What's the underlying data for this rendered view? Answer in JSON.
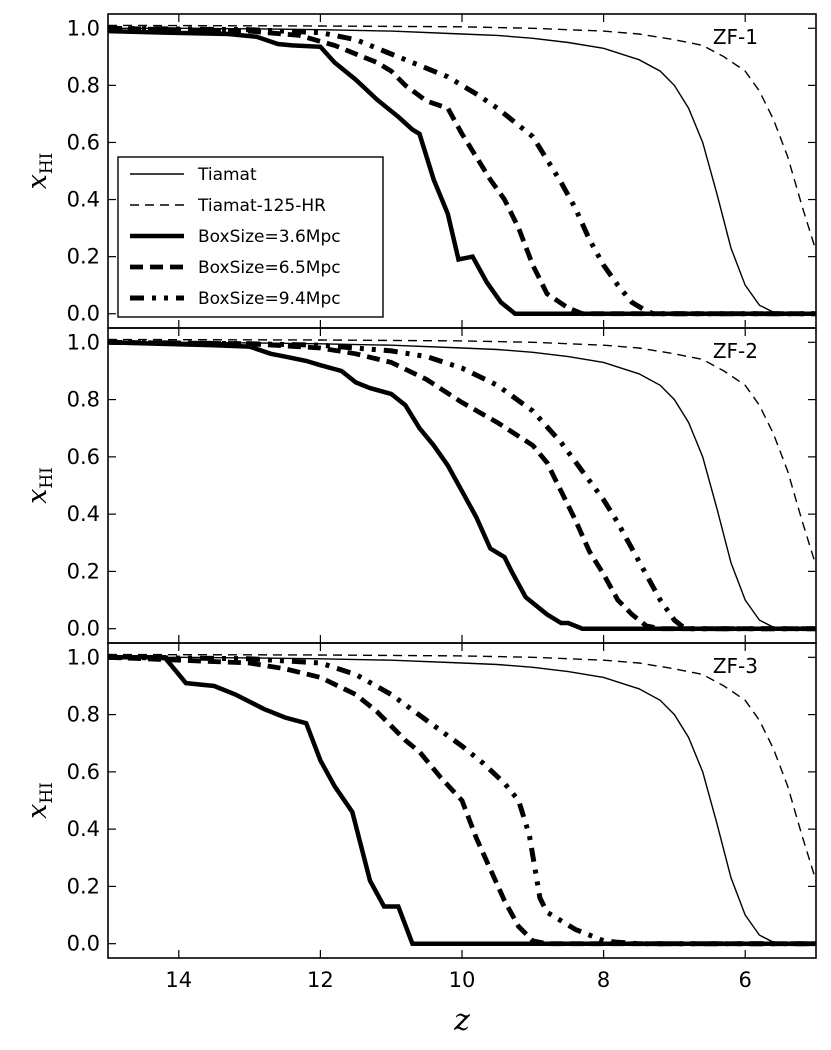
{
  "chart_data": [
    {
      "type": "line",
      "panel_label": "ZF-1",
      "xlabel": "z",
      "ylabel": "x",
      "ylabel_sub": "HI",
      "xlim": [
        15,
        5
      ],
      "ylim": [
        -0.05,
        1.05
      ],
      "xticks": [
        14,
        12,
        10,
        8,
        6
      ],
      "yticks": [
        "0.0",
        "0.2",
        "0.4",
        "0.6",
        "0.8",
        "1.0"
      ],
      "legend": {
        "position": "center-left",
        "entries": [
          "Tiamat",
          "Tiamat-125-HR",
          "BoxSize=3.6Mpc",
          "BoxSize=6.5Mpc",
          "BoxSize=9.4Mpc"
        ]
      },
      "series": [
        {
          "name": "Tiamat",
          "style": "thin-solid",
          "x": [
            15,
            14,
            13,
            12,
            11,
            10,
            9.5,
            9,
            8.5,
            8,
            7.5,
            7.2,
            7,
            6.8,
            6.6,
            6.4,
            6.2,
            6,
            5.8,
            5.6,
            5.4,
            5
          ],
          "y": [
            1.0,
            1.0,
            0.998,
            0.995,
            0.99,
            0.98,
            0.975,
            0.965,
            0.95,
            0.93,
            0.89,
            0.85,
            0.8,
            0.72,
            0.6,
            0.42,
            0.23,
            0.1,
            0.03,
            0.005,
            0.0,
            0.0
          ]
        },
        {
          "name": "Tiamat-125-HR",
          "style": "thin-dashed",
          "x": [
            15,
            12,
            10,
            9,
            8,
            7.5,
            7,
            6.6,
            6.3,
            6,
            5.8,
            5.6,
            5.4,
            5.2,
            5
          ],
          "y": [
            1.01,
            1.008,
            1.005,
            1.0,
            0.99,
            0.98,
            0.96,
            0.94,
            0.9,
            0.85,
            0.78,
            0.68,
            0.55,
            0.38,
            0.22
          ]
        },
        {
          "name": "BoxSize=3.6Mpc",
          "style": "thick-solid",
          "x": [
            15,
            14.2,
            13.3,
            12.9,
            12.6,
            12.4,
            12.0,
            11.8,
            11.5,
            11.2,
            10.9,
            10.7,
            10.6,
            10.4,
            10.2,
            10.05,
            9.85,
            9.65,
            9.45,
            9.25,
            9.0,
            5
          ],
          "y": [
            0.99,
            0.985,
            0.98,
            0.97,
            0.945,
            0.94,
            0.935,
            0.88,
            0.82,
            0.75,
            0.69,
            0.645,
            0.63,
            0.47,
            0.35,
            0.19,
            0.2,
            0.11,
            0.04,
            0.0,
            0.0,
            0.0
          ]
        },
        {
          "name": "BoxSize=6.5Mpc",
          "style": "thick-dashed",
          "x": [
            15,
            13,
            12.3,
            11.8,
            11.5,
            11.2,
            11.0,
            10.8,
            10.5,
            10.2,
            10.0,
            9.8,
            9.6,
            9.4,
            9.2,
            9.0,
            8.8,
            8.5,
            8.3,
            8.0,
            5
          ],
          "y": [
            1.0,
            0.99,
            0.975,
            0.94,
            0.91,
            0.88,
            0.85,
            0.8,
            0.745,
            0.72,
            0.63,
            0.55,
            0.47,
            0.4,
            0.3,
            0.17,
            0.07,
            0.02,
            0.0,
            0.0,
            0.0
          ]
        },
        {
          "name": "BoxSize=9.4Mpc",
          "style": "thick-dotted",
          "x": [
            15,
            13,
            12,
            11.5,
            11.0,
            10.6,
            10.2,
            9.8,
            9.5,
            9.2,
            9.0,
            8.8,
            8.6,
            8.4,
            8.2,
            8.0,
            7.8,
            7.6,
            7.4,
            7.3,
            5
          ],
          "y": [
            1.0,
            0.995,
            0.985,
            0.96,
            0.91,
            0.87,
            0.83,
            0.77,
            0.72,
            0.66,
            0.62,
            0.54,
            0.46,
            0.37,
            0.26,
            0.17,
            0.1,
            0.04,
            0.01,
            0.0,
            0.0
          ]
        }
      ]
    },
    {
      "type": "line",
      "panel_label": "ZF-2",
      "xlabel": "z",
      "ylabel": "x",
      "ylabel_sub": "HI",
      "xlim": [
        15,
        5
      ],
      "ylim": [
        -0.05,
        1.05
      ],
      "xticks": [
        14,
        12,
        10,
        8,
        6
      ],
      "yticks": [
        "0.0",
        "0.2",
        "0.4",
        "0.6",
        "0.8",
        "1.0"
      ],
      "series": [
        {
          "name": "Tiamat",
          "style": "thin-solid",
          "x": [
            15,
            14,
            13,
            12,
            11,
            10,
            9.5,
            9,
            8.5,
            8,
            7.5,
            7.2,
            7,
            6.8,
            6.6,
            6.4,
            6.2,
            6,
            5.8,
            5.6,
            5.4,
            5
          ],
          "y": [
            1.0,
            1.0,
            0.998,
            0.995,
            0.99,
            0.98,
            0.975,
            0.965,
            0.95,
            0.93,
            0.89,
            0.85,
            0.8,
            0.72,
            0.6,
            0.42,
            0.23,
            0.1,
            0.03,
            0.005,
            0.0,
            0.0
          ]
        },
        {
          "name": "Tiamat-125-HR",
          "style": "thin-dashed",
          "x": [
            15,
            12,
            10,
            9,
            8,
            7.5,
            7,
            6.6,
            6.3,
            6,
            5.8,
            5.6,
            5.4,
            5.2,
            5
          ],
          "y": [
            1.01,
            1.008,
            1.005,
            1.0,
            0.99,
            0.98,
            0.96,
            0.94,
            0.9,
            0.85,
            0.78,
            0.68,
            0.55,
            0.38,
            0.22
          ]
        },
        {
          "name": "BoxSize=3.6Mpc",
          "style": "thick-solid",
          "x": [
            15,
            13.5,
            13.0,
            12.7,
            12.5,
            12.2,
            12.0,
            11.7,
            11.5,
            11.3,
            11.0,
            10.8,
            10.6,
            10.4,
            10.2,
            10.0,
            9.8,
            9.6,
            9.4,
            9.3,
            9.1,
            8.95,
            8.8,
            8.6,
            8.5,
            8.3,
            5
          ],
          "y": [
            1.0,
            0.99,
            0.985,
            0.96,
            0.95,
            0.935,
            0.92,
            0.9,
            0.86,
            0.84,
            0.82,
            0.78,
            0.7,
            0.64,
            0.57,
            0.48,
            0.39,
            0.28,
            0.25,
            0.2,
            0.11,
            0.08,
            0.05,
            0.02,
            0.02,
            0.0,
            0.0
          ]
        },
        {
          "name": "BoxSize=6.5Mpc",
          "style": "thick-dashed",
          "x": [
            15,
            13,
            12.0,
            11.5,
            11.0,
            10.5,
            10.0,
            9.5,
            9.0,
            8.8,
            8.6,
            8.4,
            8.2,
            8.0,
            7.8,
            7.6,
            7.4,
            7.2,
            7.0,
            6.8,
            5
          ],
          "y": [
            1.0,
            0.995,
            0.98,
            0.96,
            0.93,
            0.87,
            0.79,
            0.72,
            0.64,
            0.58,
            0.48,
            0.38,
            0.27,
            0.19,
            0.1,
            0.05,
            0.01,
            0.0,
            0.0,
            0.0,
            0.0
          ]
        },
        {
          "name": "BoxSize=9.4Mpc",
          "style": "thick-dotted",
          "x": [
            15,
            13,
            12,
            11.0,
            10.5,
            10.0,
            9.5,
            9.0,
            8.6,
            8.3,
            8.0,
            7.8,
            7.6,
            7.4,
            7.2,
            7.0,
            6.9,
            6.8,
            5
          ],
          "y": [
            1.0,
            0.995,
            0.99,
            0.97,
            0.95,
            0.91,
            0.85,
            0.76,
            0.65,
            0.55,
            0.45,
            0.37,
            0.28,
            0.19,
            0.1,
            0.03,
            0.01,
            0.0,
            0.0
          ]
        }
      ]
    },
    {
      "type": "line",
      "panel_label": "ZF-3",
      "xlabel": "z",
      "ylabel": "x",
      "ylabel_sub": "HI",
      "xlim": [
        15,
        5
      ],
      "ylim": [
        -0.05,
        1.05
      ],
      "xticks": [
        14,
        12,
        10,
        8,
        6
      ],
      "yticks": [
        "0.0",
        "0.2",
        "0.4",
        "0.6",
        "0.8",
        "1.0"
      ],
      "series": [
        {
          "name": "Tiamat",
          "style": "thin-solid",
          "x": [
            15,
            14,
            13,
            12,
            11,
            10,
            9.5,
            9,
            8.5,
            8,
            7.5,
            7.2,
            7,
            6.8,
            6.6,
            6.4,
            6.2,
            6,
            5.8,
            5.6,
            5.4,
            5
          ],
          "y": [
            1.0,
            1.0,
            0.998,
            0.995,
            0.99,
            0.98,
            0.975,
            0.965,
            0.95,
            0.93,
            0.89,
            0.85,
            0.8,
            0.72,
            0.6,
            0.42,
            0.23,
            0.1,
            0.03,
            0.005,
            0.0,
            0.0
          ]
        },
        {
          "name": "Tiamat-125-HR",
          "style": "thin-dashed",
          "x": [
            15,
            12,
            10,
            9,
            8,
            7.5,
            7,
            6.6,
            6.3,
            6,
            5.8,
            5.6,
            5.4,
            5.2,
            5
          ],
          "y": [
            1.01,
            1.008,
            1.005,
            1.0,
            0.99,
            0.98,
            0.96,
            0.94,
            0.9,
            0.85,
            0.78,
            0.68,
            0.55,
            0.38,
            0.22
          ]
        },
        {
          "name": "BoxSize=3.6Mpc",
          "style": "thick-solid",
          "x": [
            15,
            14.2,
            13.9,
            13.5,
            13.2,
            12.8,
            12.5,
            12.2,
            12.0,
            11.8,
            11.55,
            11.3,
            11.1,
            10.9,
            10.7,
            5
          ],
          "y": [
            1.0,
            1.0,
            0.91,
            0.9,
            0.87,
            0.82,
            0.79,
            0.77,
            0.64,
            0.55,
            0.46,
            0.22,
            0.13,
            0.13,
            0.0,
            0.0
          ]
        },
        {
          "name": "BoxSize=6.5Mpc",
          "style": "thick-dashed",
          "x": [
            15,
            13,
            12.5,
            12.0,
            11.5,
            11.2,
            11.0,
            10.8,
            10.6,
            10.3,
            10.0,
            9.8,
            9.6,
            9.4,
            9.2,
            9.0,
            8.8,
            5
          ],
          "y": [
            1.0,
            0.98,
            0.96,
            0.93,
            0.87,
            0.81,
            0.76,
            0.71,
            0.67,
            0.58,
            0.5,
            0.37,
            0.26,
            0.15,
            0.06,
            0.01,
            0.0,
            0.0
          ]
        },
        {
          "name": "BoxSize=9.4Mpc",
          "style": "thick-dotted",
          "x": [
            15,
            13,
            12.0,
            11.5,
            11.0,
            10.5,
            10.0,
            9.7,
            9.4,
            9.2,
            9.05,
            8.9,
            8.8,
            8.6,
            8.4,
            8.2,
            8.0,
            7.8,
            7.5,
            5
          ],
          "y": [
            1.0,
            0.995,
            0.98,
            0.94,
            0.87,
            0.78,
            0.69,
            0.63,
            0.56,
            0.5,
            0.38,
            0.16,
            0.11,
            0.08,
            0.05,
            0.03,
            0.01,
            0.005,
            0.0,
            0.0
          ]
        }
      ]
    }
  ]
}
